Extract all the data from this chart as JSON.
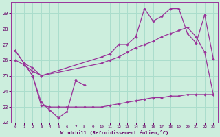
{
  "xlabel": "Windchill (Refroidissement éolien,°C)",
  "bg_color": "#cceedd",
  "grid_color": "#aaddcc",
  "line_color": "#993399",
  "xlim": [
    -0.5,
    23.5
  ],
  "ylim": [
    22.0,
    29.7
  ],
  "xticks": [
    0,
    1,
    2,
    3,
    4,
    5,
    6,
    7,
    8,
    9,
    10,
    11,
    12,
    13,
    14,
    15,
    16,
    17,
    18,
    19,
    20,
    21,
    22,
    23
  ],
  "yticks": [
    22,
    23,
    24,
    25,
    26,
    27,
    28,
    29
  ],
  "series_zigzag_x": [
    0,
    1,
    2,
    3,
    4,
    5,
    6,
    7,
    8
  ],
  "series_zigzag_y": [
    26.6,
    25.8,
    25.0,
    23.3,
    22.8,
    22.3,
    22.7,
    24.7,
    24.4
  ],
  "series_main_x": [
    0,
    1,
    2,
    3,
    10,
    11,
    12,
    13,
    14,
    15,
    16,
    17,
    18,
    19,
    20,
    21,
    22,
    23
  ],
  "series_main_y": [
    26.6,
    25.8,
    25.5,
    25.0,
    26.2,
    26.4,
    27.0,
    27.0,
    27.5,
    29.3,
    28.5,
    28.8,
    29.3,
    29.3,
    27.7,
    27.1,
    28.9,
    26.1
  ],
  "series_smooth_x": [
    0,
    1,
    2,
    3,
    10,
    11,
    12,
    13,
    14,
    15,
    16,
    17,
    18,
    19,
    20,
    21,
    22,
    23
  ],
  "series_smooth_y": [
    26.0,
    25.7,
    25.3,
    25.0,
    25.8,
    26.0,
    26.2,
    26.5,
    26.8,
    27.0,
    27.2,
    27.5,
    27.7,
    27.9,
    28.1,
    27.5,
    26.5,
    23.8
  ],
  "series_flat_x": [
    1,
    2,
    3,
    4,
    5,
    6,
    7,
    8,
    9,
    10,
    11,
    12,
    13,
    14,
    15,
    16,
    17,
    18,
    19,
    20,
    21,
    22,
    23
  ],
  "series_flat_y": [
    25.8,
    25.0,
    23.1,
    23.0,
    23.0,
    23.0,
    23.0,
    23.0,
    23.0,
    23.0,
    23.1,
    23.2,
    23.3,
    23.4,
    23.5,
    23.6,
    23.6,
    23.7,
    23.7,
    23.8,
    23.8,
    23.8,
    23.8
  ]
}
